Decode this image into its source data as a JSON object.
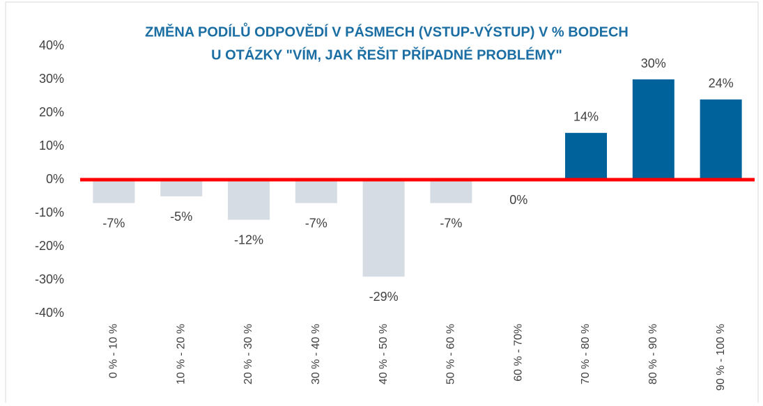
{
  "chart_data": {
    "type": "bar",
    "title_lines": [
      "ZMĚNA PODÍLŮ ODPOVĚDÍ V PÁSMECH (VSTUP-VÝSTUP) V % BODECH",
      "U OTÁZKY \"VÍM, JAK ŘEŠIT PŘÍPADNÉ PROBLÉMY\""
    ],
    "categories": [
      "0 % - 10 %",
      "10 % - 20 %",
      "20 % - 30 %",
      "30 % - 40 %",
      "40 % - 50 %",
      "50 % - 60 %",
      "60 % - 70%",
      "70 % - 80 %",
      "80 % - 90 %",
      "90 % - 100 %"
    ],
    "values": [
      -7,
      -5,
      -12,
      -7,
      -29,
      -7,
      0,
      14,
      30,
      24
    ],
    "value_labels": [
      "-7%",
      "-5%",
      "-12%",
      "-7%",
      "-29%",
      "-7%",
      "0%",
      "14%",
      "30%",
      "24%"
    ],
    "colors": [
      "#d6dce4",
      "#d6dce4",
      "#d6dce4",
      "#d6dce4",
      "#d6dce4",
      "#d6dce4",
      "#d6dce4",
      "#00629b",
      "#00629b",
      "#00629b"
    ],
    "zero_line_color": "#ff0000",
    "ylim": [
      -40,
      40
    ],
    "yticks": [
      {
        "value": -40,
        "label": "-40%"
      },
      {
        "value": -30,
        "label": "-30%"
      },
      {
        "value": -20,
        "label": "-20%"
      },
      {
        "value": -10,
        "label": "-10%"
      },
      {
        "value": 0,
        "label": "0%"
      },
      {
        "value": 10,
        "label": "10%"
      },
      {
        "value": 20,
        "label": "20%"
      },
      {
        "value": 30,
        "label": "30%"
      },
      {
        "value": 40,
        "label": "40%"
      }
    ],
    "grid": false
  }
}
